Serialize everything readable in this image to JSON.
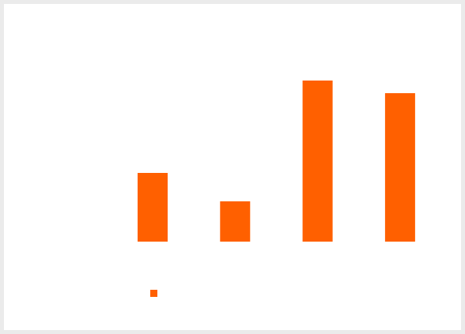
{
  "chart_data": {
    "type": "bar",
    "categories": [
      "",
      "",
      "",
      ""
    ],
    "values": [
      87,
      51,
      204,
      188
    ],
    "ylim": [
      0,
      220
    ],
    "grid": false,
    "legend": "bottom-left",
    "series": [
      {
        "values": [
          87,
          51,
          204,
          188
        ]
      }
    ],
    "colors": {
      "bar": "#ff6000",
      "background": "#ffffff",
      "frame": "#ebebeb"
    }
  }
}
